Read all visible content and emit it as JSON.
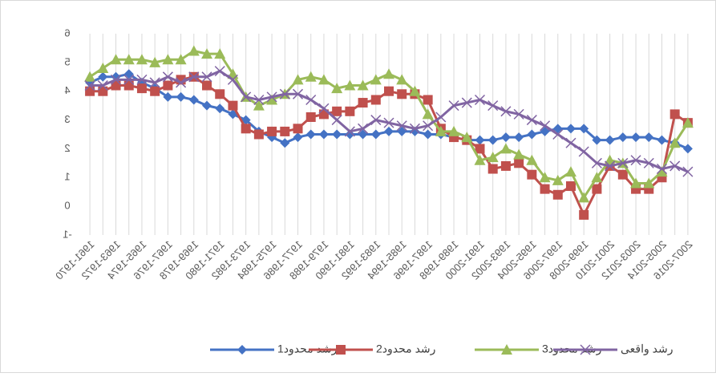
{
  "chart_data": {
    "type": "line",
    "categories": [
      "1961-1970",
      null,
      "1963-1972",
      null,
      "1965-1974",
      null,
      "1967-1976",
      null,
      "1969-1978",
      null,
      "1971-1980",
      null,
      "1973-1982",
      null,
      "1975-1984",
      null,
      "1977-1986",
      null,
      "1979-1988",
      null,
      "1981-1990",
      null,
      "1983-1992",
      null,
      "1985-1994",
      null,
      "1987-1996",
      null,
      "1989-1998",
      null,
      "1991-2000",
      null,
      "1993-2002",
      null,
      "1995-2004",
      null,
      "1997-2006",
      null,
      "1999-2008",
      null,
      "2001-2010",
      null,
      "2003-2012",
      null,
      "2005-2014",
      null,
      "2007-2016"
    ],
    "series": [
      {
        "name": "رشد محدود1",
        "color": "#4472c4",
        "marker": "diamond",
        "values": [
          4.3,
          4.5,
          4.5,
          4.6,
          4.3,
          4.1,
          3.8,
          3.8,
          3.7,
          3.5,
          3.4,
          3.2,
          3.0,
          2.6,
          2.4,
          2.2,
          2.4,
          2.5,
          2.5,
          2.5,
          2.5,
          2.5,
          2.5,
          2.6,
          2.6,
          2.6,
          2.5,
          2.5,
          2.4,
          2.3,
          2.3,
          2.3,
          2.4,
          2.4,
          2.5,
          2.6,
          2.7,
          2.7,
          2.7,
          2.3,
          2.3,
          2.4,
          2.4,
          2.4,
          2.3,
          2.2,
          2.0
        ]
      },
      {
        "name": "رشد محدود2",
        "color": "#c0504d",
        "marker": "square",
        "values": [
          4.0,
          4.0,
          4.2,
          4.2,
          4.1,
          4.0,
          4.2,
          4.4,
          4.5,
          4.2,
          3.9,
          3.5,
          2.7,
          2.5,
          2.6,
          2.6,
          2.7,
          3.1,
          3.2,
          3.3,
          3.3,
          3.6,
          3.7,
          4.0,
          3.9,
          3.9,
          3.7,
          2.7,
          2.4,
          2.3,
          2.0,
          1.3,
          1.4,
          1.5,
          1.1,
          0.6,
          0.4,
          0.7,
          -0.3,
          0.6,
          1.4,
          1.1,
          0.6,
          0.6,
          1.0,
          3.2,
          2.9
        ]
      },
      {
        "name": "رشد محدود3",
        "color": "#9bbb59",
        "marker": "triangle",
        "values": [
          4.5,
          4.8,
          5.1,
          5.1,
          5.1,
          5.0,
          5.1,
          5.1,
          5.4,
          5.3,
          5.3,
          4.6,
          3.8,
          3.5,
          3.7,
          3.9,
          4.4,
          4.5,
          4.4,
          4.1,
          4.2,
          4.2,
          4.4,
          4.6,
          4.4,
          4.0,
          3.2,
          2.6,
          2.6,
          2.4,
          1.6,
          1.7,
          2.0,
          1.8,
          1.6,
          1.0,
          0.9,
          1.2,
          0.3,
          1.0,
          1.6,
          1.5,
          0.8,
          0.8,
          1.2,
          2.2,
          2.9
        ]
      },
      {
        "name": "رشد واقعی",
        "color": "#8064a2",
        "marker": "x",
        "values": [
          4.2,
          4.2,
          4.4,
          4.4,
          4.4,
          4.3,
          4.5,
          4.3,
          4.5,
          4.5,
          4.7,
          4.4,
          3.8,
          3.7,
          3.8,
          3.9,
          3.9,
          3.7,
          3.4,
          3.0,
          2.6,
          2.7,
          3.0,
          2.9,
          2.8,
          2.7,
          2.8,
          3.1,
          3.5,
          3.6,
          3.7,
          3.5,
          3.3,
          3.2,
          3.0,
          2.8,
          2.5,
          2.2,
          1.9,
          1.5,
          1.4,
          1.5,
          1.6,
          1.5,
          1.3,
          1.4,
          1.2
        ]
      }
    ],
    "ylim": [
      -1,
      6
    ],
    "yticks": [
      -1,
      0,
      1,
      2,
      3,
      4,
      5,
      6
    ],
    "grid": true,
    "legend": "bottom"
  }
}
